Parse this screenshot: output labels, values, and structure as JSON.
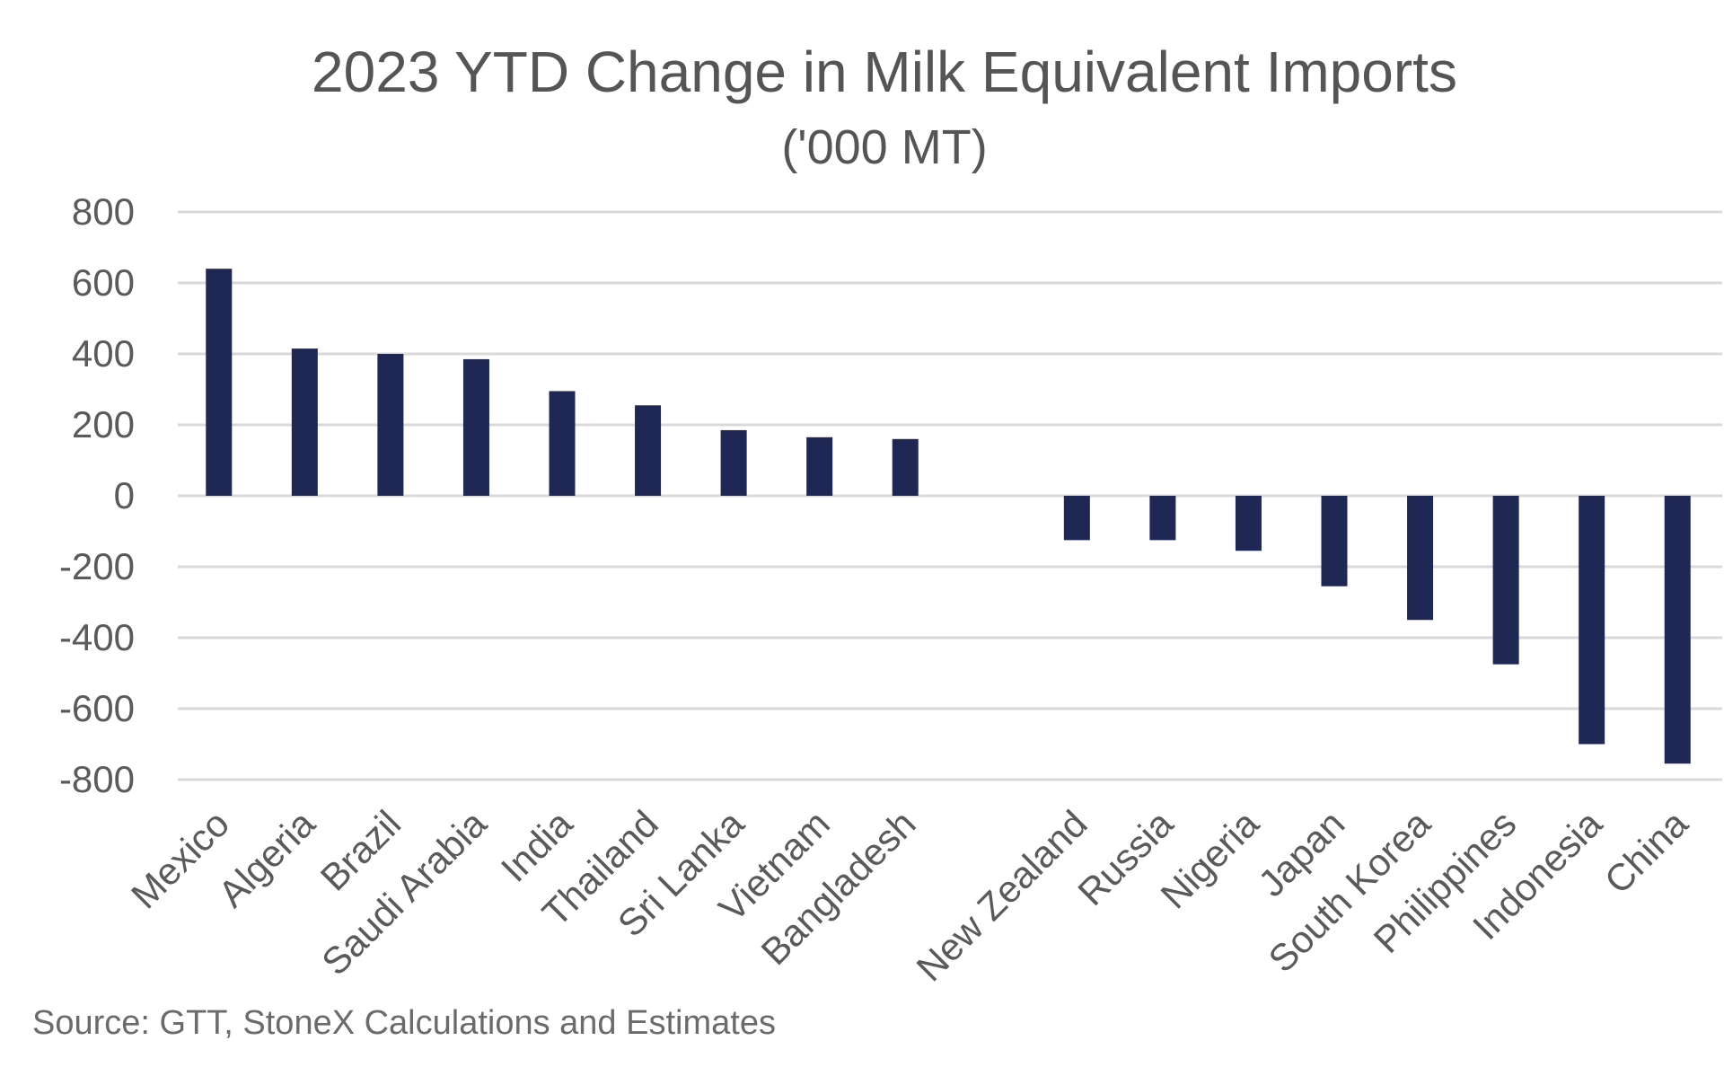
{
  "chart_data": {
    "type": "bar",
    "title": "2023 YTD Change in Milk Equivalent Imports",
    "subtitle": "('000 MT)",
    "xlabel": "",
    "ylabel": "",
    "ylim": [
      -800,
      800
    ],
    "yticks": [
      800,
      600,
      400,
      200,
      0,
      -200,
      -400,
      -600,
      -800
    ],
    "grid": true,
    "legend": "none",
    "categories": [
      "Mexico",
      "Algeria",
      "Brazil",
      "Saudi Arabia",
      "India",
      "Thailand",
      "Sri Lanka",
      "Vietnam",
      "Bangladesh",
      "",
      "New Zealand",
      "Russia",
      "Nigeria",
      "Japan",
      "South Korea",
      "Philippines",
      "Indonesia",
      "China"
    ],
    "series": [
      {
        "name": "Change in Milk Equivalent Imports",
        "color": "#1f2755",
        "values": [
          640,
          415,
          400,
          385,
          295,
          255,
          185,
          165,
          160,
          null,
          -125,
          -125,
          -155,
          -255,
          -350,
          -475,
          -700,
          -755
        ]
      }
    ]
  },
  "source": "Source: GTT, StoneX Calculations and Estimates",
  "colors": {
    "bar": "#1f2755",
    "grid": "#d9d9d9",
    "text": "#595959"
  }
}
